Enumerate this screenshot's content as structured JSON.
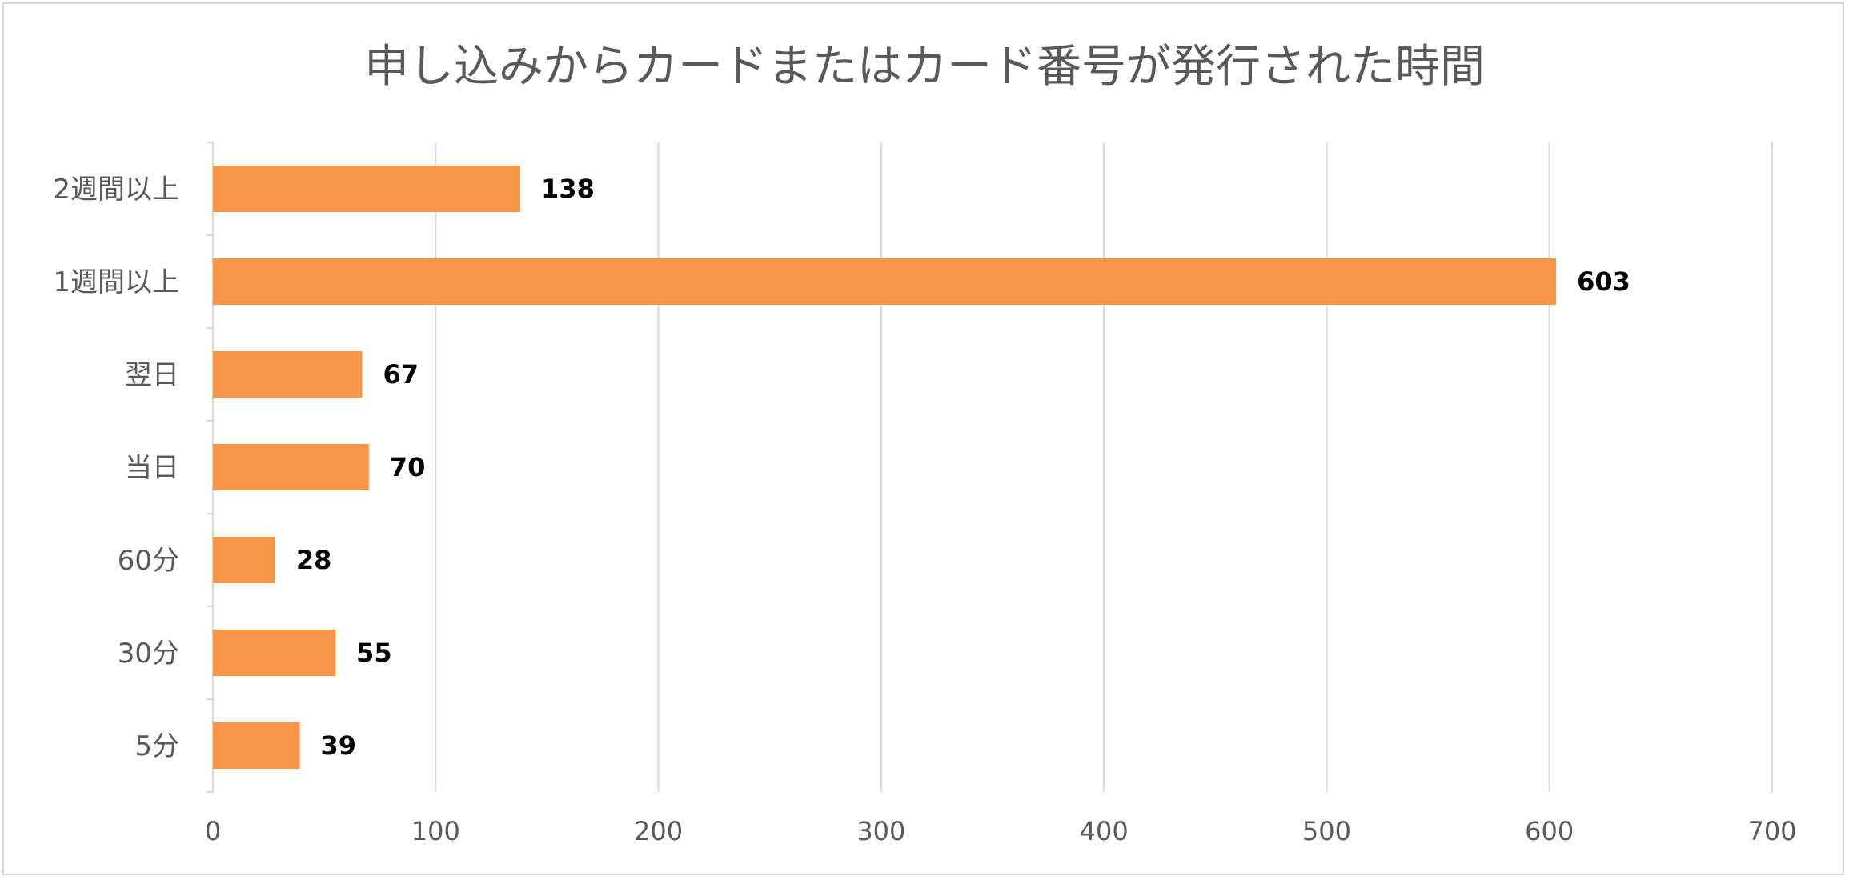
{
  "chart_data": {
    "type": "bar",
    "orientation": "horizontal",
    "title": "申し込みからカードまたはカード番号が発行された時間",
    "categories": [
      "2週間以上",
      "1週間以上",
      "翌日",
      "当日",
      "60分",
      "30分",
      "5分"
    ],
    "values": [
      138,
      603,
      67,
      70,
      28,
      55,
      39
    ],
    "data_labels": [
      "138",
      "603",
      "67",
      "70",
      "28",
      "55",
      "39"
    ],
    "xlim": [
      0,
      700
    ],
    "x_ticks": [
      0,
      100,
      200,
      300,
      400,
      500,
      600,
      700
    ],
    "x_tick_labels": [
      "0",
      "100",
      "200",
      "300",
      "400",
      "500",
      "600",
      "700"
    ],
    "xlabel": "",
    "ylabel": "",
    "grid": true,
    "legend": "none",
    "bar_color": "#f79646",
    "grid_color": "#d9d9d9"
  }
}
